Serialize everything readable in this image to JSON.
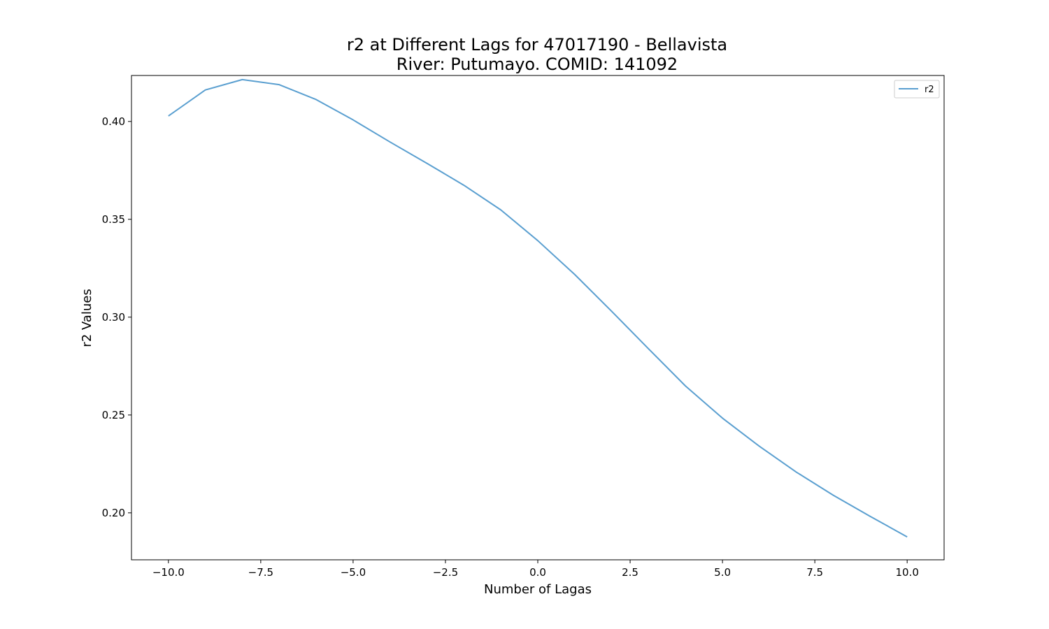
{
  "chart_data": {
    "type": "line",
    "title": "r2 at Different Lags for 47017190 - Bellavista",
    "subtitle": "River: Putumayo. COMID: 141092",
    "xlabel": "Number of Lagas",
    "ylabel": "r2 Values",
    "xlim": [
      -11,
      11
    ],
    "ylim": [
      0.176,
      0.4235
    ],
    "x_ticks": [
      -10.0,
      -7.5,
      -5.0,
      -2.5,
      0.0,
      2.5,
      5.0,
      7.5,
      10.0
    ],
    "x_tick_labels": [
      "−10.0",
      "−7.5",
      "−5.0",
      "−2.5",
      "0.0",
      "2.5",
      "5.0",
      "7.5",
      "10.0"
    ],
    "y_ticks": [
      0.2,
      0.25,
      0.3,
      0.35,
      0.4
    ],
    "y_tick_labels": [
      "0.20",
      "0.25",
      "0.30",
      "0.35",
      "0.40"
    ],
    "grid": false,
    "legend_position": "top-right",
    "colors": {
      "line": "#5a9fd0"
    },
    "x": [
      -10,
      -9,
      -8,
      -7,
      -6,
      -5,
      -4,
      -3,
      -2,
      -1,
      0,
      1,
      2,
      3,
      4,
      5,
      6,
      7,
      8,
      9,
      10
    ],
    "series": [
      {
        "name": "r2",
        "values": [
          0.4028,
          0.4161,
          0.4214,
          0.4188,
          0.4112,
          0.4008,
          0.3895,
          0.3786,
          0.3674,
          0.3548,
          0.3391,
          0.3218,
          0.303,
          0.2838,
          0.2648,
          0.2484,
          0.234,
          0.2208,
          0.209,
          0.1982,
          0.1877
        ]
      }
    ]
  }
}
